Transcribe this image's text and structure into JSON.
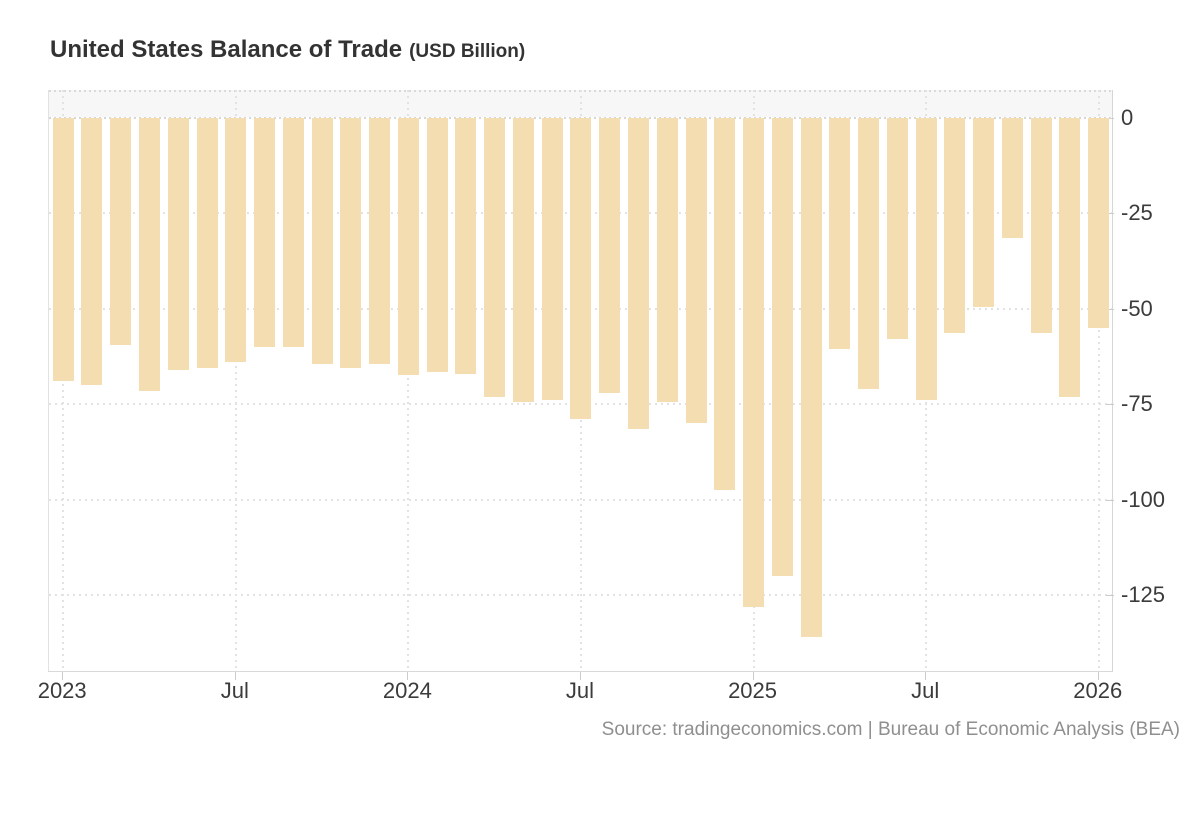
{
  "header": {
    "title": "United States Balance of Trade",
    "subtitle": "(USD Billion)"
  },
  "footer": {
    "source": "Source: tradingeconomics.com | Bureau of Economic Analysis (BEA)"
  },
  "chart_data": {
    "type": "bar",
    "title": "United States Balance of Trade",
    "units": "USD Billion",
    "legend": "none",
    "grid": "dotted",
    "bar_color": "#f4ddb0",
    "positive_band_color": "#f7f7f7",
    "ylim": [
      -145,
      7
    ],
    "y_axis_ticks": [
      0,
      -25,
      -50,
      -75,
      -100,
      -125
    ],
    "x_axis_ticks": [
      {
        "label": "2023",
        "index": 0
      },
      {
        "label": "Jul",
        "index": 6
      },
      {
        "label": "2024",
        "index": 12
      },
      {
        "label": "Jul",
        "index": 18
      },
      {
        "label": "2025",
        "index": 24
      },
      {
        "label": "Jul",
        "index": 30
      },
      {
        "label": "2026",
        "index": 36
      }
    ],
    "categories": [
      "Jan 2023",
      "Feb 2023",
      "Mar 2023",
      "Apr 2023",
      "May 2023",
      "Jun 2023",
      "Jul 2023",
      "Aug 2023",
      "Sep 2023",
      "Oct 2023",
      "Nov 2023",
      "Dec 2023",
      "Jan 2024",
      "Feb 2024",
      "Mar 2024",
      "Apr 2024",
      "May 2024",
      "Jun 2024",
      "Jul 2024",
      "Aug 2024",
      "Sep 2024",
      "Oct 2024",
      "Nov 2024",
      "Dec 2024",
      "Jan 2025",
      "Feb 2025",
      "Mar 2025",
      "Apr 2025",
      "May 2025",
      "Jun 2025",
      "Jul 2025",
      "Aug 2025",
      "Sep 2025",
      "Oct 2025",
      "Nov 2025",
      "Dec 2025",
      "Jan 2026"
    ],
    "values": [
      -69,
      -70,
      -59.5,
      -71.5,
      -66,
      -65.5,
      -64,
      -60,
      -60,
      -64.5,
      -65.5,
      -64.5,
      -67.5,
      -66.5,
      -67,
      -73,
      -74.5,
      -74,
      -79,
      -72,
      -81.5,
      -74.5,
      -80,
      -97.5,
      -128,
      -120,
      -136,
      -60.5,
      -71,
      -58,
      -74,
      -56.5,
      -49.5,
      -31.5,
      -56.5,
      -73,
      -55
    ]
  }
}
